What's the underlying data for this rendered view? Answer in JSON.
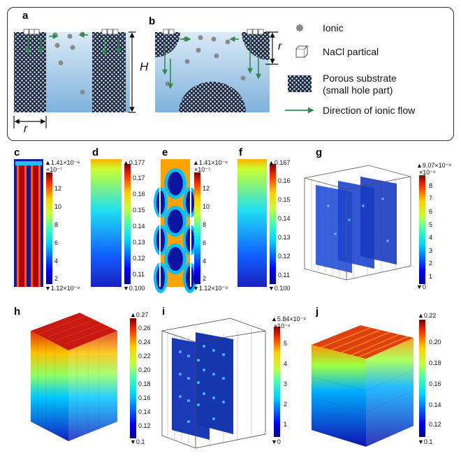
{
  "schematic": {
    "panel_a": "a",
    "panel_b": "b",
    "height_label": "H",
    "radius_label_a": "r",
    "radius_label_b": "r",
    "legend": {
      "ionic": "Ionic",
      "nacl": "NaCl partical",
      "porous_1": "Porous substrate",
      "porous_2": "(small hole part)",
      "flow": "Direction of ionic flow"
    }
  },
  "panels": {
    "c": {
      "label": "c",
      "max": "▲1.41×10⁻⁶",
      "exp": "×10⁻⁷",
      "ticks": [
        "12",
        "10",
        "8",
        "6",
        "4",
        "2"
      ],
      "min": "▼1.12×10⁻⁹"
    },
    "d": {
      "label": "d",
      "max": "▲0.177",
      "ticks": [
        "0.17",
        "0.16",
        "0.15",
        "0.14",
        "0.13",
        "0.12",
        "0.11"
      ],
      "min": "▼0.100"
    },
    "e": {
      "label": "e",
      "max": "▲1.41×10⁻⁶",
      "exp": "×10⁻⁷",
      "ticks": [
        "12",
        "10",
        "8",
        "6",
        "4",
        "2"
      ],
      "min": "▼1.12×10⁻⁹"
    },
    "f": {
      "label": "f",
      "max": "▲0.167",
      "ticks": [
        "0.16",
        "0.15",
        "0.14",
        "0.13",
        "0.12",
        "0.11"
      ],
      "min": "▼0.100"
    },
    "g": {
      "label": "g",
      "max": "▲9.07×10⁻⁶",
      "exp": "×10⁻⁶",
      "ticks": [
        "8",
        "7",
        "6",
        "5",
        "4",
        "3",
        "2",
        "1"
      ],
      "min": "▼0"
    },
    "h": {
      "label": "h",
      "max": "▲0.27",
      "ticks": [
        "0.26",
        "0.24",
        "0.22",
        "0.20",
        "0.18",
        "0.16",
        "0.14",
        "0.12"
      ],
      "min": "▼0.1"
    },
    "i": {
      "label": "i",
      "max": "▲5.84×10⁻⁶",
      "exp": "×10⁻⁶",
      "ticks": [
        "5",
        "4",
        "3",
        "2",
        "1"
      ],
      "min": "▼0"
    },
    "j": {
      "label": "j",
      "max": "▲0.22",
      "ticks": [
        "0.20",
        "0.18",
        "0.16",
        "0.14",
        "0.12"
      ],
      "min": "▼0.1"
    }
  },
  "colors": {
    "water_top": "#dbeaf7",
    "water_bottom": "#7fb2dc",
    "arrow": "#2f8a4f",
    "ion": "#8a8a8a"
  }
}
